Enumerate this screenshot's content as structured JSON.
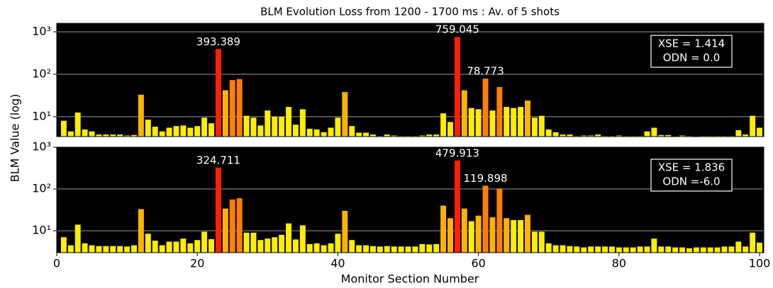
{
  "chart_data": {
    "type": "bar",
    "title": "BLM Evolution Loss from 1200 - 1700 ms : Av. of 5 shots",
    "xlabel": "Monitor Section Number",
    "ylabel": "BLM Value (log)",
    "xlim": [
      0,
      100.6
    ],
    "xticks": [
      0,
      20,
      40,
      60,
      80,
      100
    ],
    "log_y": true,
    "grid": true,
    "x": [
      1,
      2,
      3,
      4,
      5,
      6,
      7,
      8,
      9,
      10,
      11,
      12,
      13,
      14,
      15,
      16,
      17,
      18,
      19,
      20,
      21,
      22,
      23,
      24,
      25,
      26,
      27,
      28,
      29,
      30,
      31,
      32,
      33,
      34,
      35,
      36,
      37,
      38,
      39,
      40,
      41,
      42,
      43,
      44,
      45,
      46,
      47,
      48,
      49,
      50,
      51,
      52,
      53,
      54,
      55,
      56,
      57,
      58,
      59,
      60,
      61,
      62,
      63,
      64,
      65,
      66,
      67,
      68,
      69,
      70,
      71,
      72,
      73,
      74,
      75,
      76,
      77,
      78,
      79,
      80,
      81,
      82,
      83,
      84,
      85,
      86,
      87,
      88,
      89,
      90,
      91,
      92,
      93,
      94,
      95,
      96,
      97,
      98,
      99,
      100
    ],
    "panels": [
      {
        "ylim": [
          3.4,
          1585
        ],
        "yticks": [
          {
            "value": 10,
            "label": "10¹"
          },
          {
            "value": 100,
            "label": "10²"
          },
          {
            "value": 1000,
            "label": "10³"
          }
        ],
        "info_box": [
          "XSE = 1.414",
          "ODN = 0.0"
        ],
        "values": [
          8,
          4.5,
          12.5,
          5,
          4.5,
          3.8,
          3.8,
          3.8,
          3.8,
          3.6,
          3.7,
          33,
          8.5,
          5.8,
          4.5,
          5.5,
          6,
          6.2,
          5.5,
          6,
          9.5,
          7,
          393.389,
          42,
          73,
          77,
          10.5,
          9.5,
          6.2,
          14,
          10,
          10,
          17,
          6.5,
          15,
          5.2,
          5,
          4.3,
          5.5,
          9.5,
          38,
          6,
          4.2,
          4.2,
          3.8,
          3.5,
          3.8,
          3.6,
          3.5,
          3.5,
          3.5,
          3.6,
          3.8,
          3.8,
          12,
          7.5,
          759.045,
          42,
          16,
          15,
          78.773,
          14,
          50,
          17,
          16,
          17,
          24,
          9.5,
          10.5,
          5,
          4.3,
          3.8,
          3.8,
          3.5,
          3.6,
          3.6,
          3.8,
          3.5,
          3.5,
          3.6,
          3.5,
          3.5,
          3.5,
          4.5,
          5.5,
          3.7,
          3.7,
          3.4,
          3.6,
          3.5,
          3.4,
          3.5,
          3.5,
          3.5,
          3.5,
          3.5,
          4.8,
          3.8,
          10.5,
          5.5
        ],
        "labeled": [
          23,
          57,
          61
        ],
        "colors": [
          "#ffee00",
          "#ffee00",
          "#ffee00",
          "#ffee00",
          "#ffee00",
          "#ffee00",
          "#ffee00",
          "#ffee00",
          "#ffee00",
          "#ffee00",
          "#ffee00",
          "#ffb300",
          "#ffee00",
          "#ffee00",
          "#ffee00",
          "#ffee00",
          "#ffee00",
          "#ffee00",
          "#ffee00",
          "#ffee00",
          "#ffee00",
          "#ffee00",
          "#ff2000",
          "#ffb300",
          "#ff8000",
          "#ff8000",
          "#ffee00",
          "#ffee00",
          "#ffee00",
          "#ffee00",
          "#ffee00",
          "#ffee00",
          "#ffee00",
          "#ffee00",
          "#ffee00",
          "#ffee00",
          "#ffee00",
          "#ffee00",
          "#ffee00",
          "#ffee00",
          "#ffb300",
          "#ffee00",
          "#ffee00",
          "#ffee00",
          "#ffee00",
          "#ffee00",
          "#ffee00",
          "#ffee00",
          "#ffee00",
          "#ffee00",
          "#ffee00",
          "#ffee00",
          "#ffee00",
          "#ffee00",
          "#ffee00",
          "#ffee00",
          "#ff2000",
          "#ffb300",
          "#ffee00",
          "#ffee00",
          "#ff8000",
          "#ffee00",
          "#ff8000",
          "#ffee00",
          "#ffee00",
          "#ffee00",
          "#ffb300",
          "#ffee00",
          "#ffee00",
          "#ffee00",
          "#ffee00",
          "#ffee00",
          "#ffee00",
          "#ffee00",
          "#ffee00",
          "#ffee00",
          "#ffee00",
          "#ffee00",
          "#ffee00",
          "#ffee00",
          "#ffee00",
          "#ffee00",
          "#ffee00",
          "#ffee00",
          "#ffee00",
          "#ffee00",
          "#ffee00",
          "#ffee00",
          "#ffee00",
          "#ffee00",
          "#ffee00",
          "#ffee00",
          "#ffee00",
          "#ffee00",
          "#ffee00",
          "#ffee00",
          "#ffee00",
          "#ffee00",
          "#ffee00",
          "#ffee00"
        ]
      },
      {
        "ylim": [
          3,
          1000
        ],
        "yticks": [
          {
            "value": 10,
            "label": "10¹"
          },
          {
            "value": 100,
            "label": "10²"
          },
          {
            "value": 1000,
            "label": "10³"
          }
        ],
        "info_box": [
          "XSE = 1.836",
          "ODN =-6.0"
        ],
        "values": [
          7,
          4.5,
          14,
          5,
          4.5,
          4.3,
          4.3,
          4.3,
          4.3,
          4.2,
          4.5,
          33,
          8.5,
          5.8,
          4.5,
          5.5,
          5.5,
          6.5,
          5,
          6,
          9.5,
          6.3,
          324.711,
          34,
          56,
          60,
          9,
          9,
          6,
          6.5,
          7,
          8,
          15,
          6.2,
          13.5,
          4.8,
          5,
          4.5,
          5,
          8.5,
          30,
          6,
          4.5,
          4.5,
          4.3,
          4.2,
          4.3,
          4.2,
          4.2,
          4.2,
          4.2,
          4.8,
          4.7,
          4.8,
          40,
          20,
          479.913,
          34,
          17,
          23,
          119.898,
          21,
          103,
          20,
          18,
          18,
          24,
          9.5,
          9.5,
          5,
          4.5,
          4.5,
          4.3,
          4.2,
          4,
          4.2,
          4.2,
          4.2,
          4.2,
          4,
          4,
          4,
          4.2,
          4.2,
          6.5,
          4.2,
          4.2,
          4,
          4,
          3.8,
          4,
          4,
          4,
          4,
          4.2,
          4.2,
          5.5,
          4.2,
          9,
          5.2
        ],
        "labeled": [
          23,
          57,
          61
        ],
        "colors": [
          "#ffee00",
          "#ffee00",
          "#ffee00",
          "#ffee00",
          "#ffee00",
          "#ffee00",
          "#ffee00",
          "#ffee00",
          "#ffee00",
          "#ffee00",
          "#ffee00",
          "#ffb300",
          "#ffee00",
          "#ffee00",
          "#ffee00",
          "#ffee00",
          "#ffee00",
          "#ffee00",
          "#ffee00",
          "#ffee00",
          "#ffee00",
          "#ffee00",
          "#ff2000",
          "#ffb300",
          "#ff8000",
          "#ff8000",
          "#ffee00",
          "#ffee00",
          "#ffee00",
          "#ffee00",
          "#ffee00",
          "#ffee00",
          "#ffee00",
          "#ffee00",
          "#ffee00",
          "#ffee00",
          "#ffee00",
          "#ffee00",
          "#ffee00",
          "#ffee00",
          "#ffb300",
          "#ffee00",
          "#ffee00",
          "#ffee00",
          "#ffee00",
          "#ffee00",
          "#ffee00",
          "#ffee00",
          "#ffee00",
          "#ffee00",
          "#ffee00",
          "#ffee00",
          "#ffee00",
          "#ffee00",
          "#ffb300",
          "#ffb300",
          "#ff2000",
          "#ffb300",
          "#ffee00",
          "#ffb300",
          "#ff8000",
          "#ffb300",
          "#ff8000",
          "#ffb300",
          "#ffee00",
          "#ffee00",
          "#ffb300",
          "#ffee00",
          "#ffee00",
          "#ffee00",
          "#ffee00",
          "#ffee00",
          "#ffee00",
          "#ffee00",
          "#ffee00",
          "#ffee00",
          "#ffee00",
          "#ffee00",
          "#ffee00",
          "#ffee00",
          "#ffee00",
          "#ffee00",
          "#ffee00",
          "#ffee00",
          "#ffee00",
          "#ffee00",
          "#ffee00",
          "#ffee00",
          "#ffee00",
          "#ffee00",
          "#ffee00",
          "#ffee00",
          "#ffee00",
          "#ffee00",
          "#ffee00",
          "#ffee00",
          "#ffee00",
          "#ffee00",
          "#ffee00",
          "#ffee00"
        ]
      }
    ]
  }
}
